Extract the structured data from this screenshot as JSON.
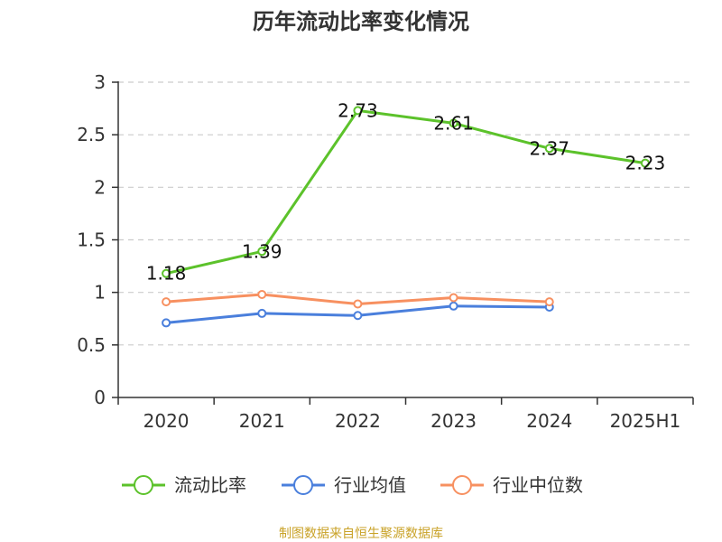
{
  "chart_data": {
    "type": "line",
    "title": "历年流动比率变化情况",
    "categories": [
      "2020",
      "2021",
      "2022",
      "2023",
      "2024",
      "2025H1"
    ],
    "ylim": [
      0,
      3
    ],
    "yticks": [
      "0",
      "0.5",
      "1",
      "1.5",
      "2",
      "2.5",
      "3"
    ],
    "grid": true,
    "legend_position": "bottom",
    "series": [
      {
        "name": "流动比率",
        "color": "#5cc22b",
        "show_labels": true,
        "values": [
          1.18,
          1.39,
          2.73,
          2.61,
          2.37,
          2.23
        ],
        "labels": [
          "1.18",
          "1.39",
          "2.73",
          "2.61",
          "2.37",
          "2.23"
        ]
      },
      {
        "name": "行业均值",
        "color": "#4a7fdc",
        "show_labels": false,
        "values": [
          0.71,
          0.8,
          0.78,
          0.87,
          0.86,
          null
        ]
      },
      {
        "name": "行业中位数",
        "color": "#f79060",
        "show_labels": false,
        "values": [
          0.91,
          0.98,
          0.89,
          0.95,
          0.91,
          null
        ]
      }
    ],
    "source": "制图数据来自恒生聚源数据库"
  }
}
